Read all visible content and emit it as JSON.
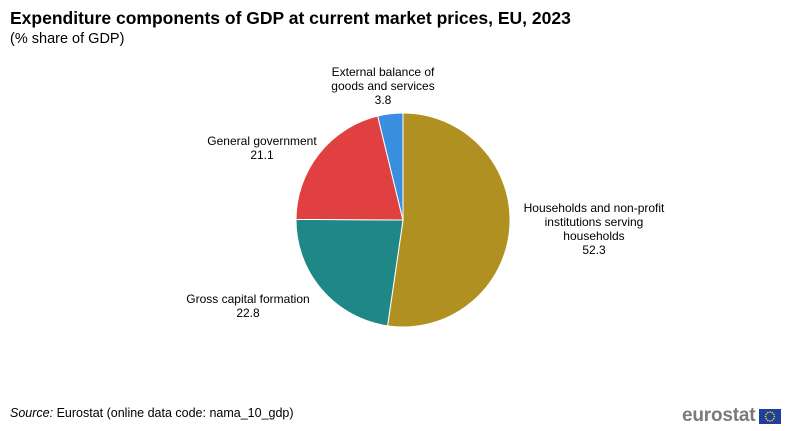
{
  "title": "Expenditure components of GDP at current market prices, EU, 2023",
  "subtitle": "(% share of GDP)",
  "source": {
    "label": "Source:",
    "text": "Eurostat (online data code: nama_10_gdp)"
  },
  "logo": {
    "text": "eurostat",
    "flag_icon": "eu-flag-icon"
  },
  "colors": {
    "households": "#b09020",
    "gcf": "#208787",
    "gov": "#e04040",
    "ext": "#3a8ee0"
  },
  "chart_data": {
    "type": "pie",
    "title": "Expenditure components of GDP at current market prices, EU, 2023",
    "subtitle": "(% share of GDP)",
    "slices": [
      {
        "label": [
          "Households and non-profit",
          "institutions serving",
          "households"
        ],
        "value": 52.3,
        "color": "#b09020"
      },
      {
        "label": [
          "Gross capital formation"
        ],
        "value": 22.8,
        "color": "#208787"
      },
      {
        "label": [
          "General government"
        ],
        "value": 21.1,
        "color": "#e04040"
      },
      {
        "label": [
          "External balance of",
          "goods and services"
        ],
        "value": 3.8,
        "color": "#3a8ee0"
      }
    ]
  }
}
